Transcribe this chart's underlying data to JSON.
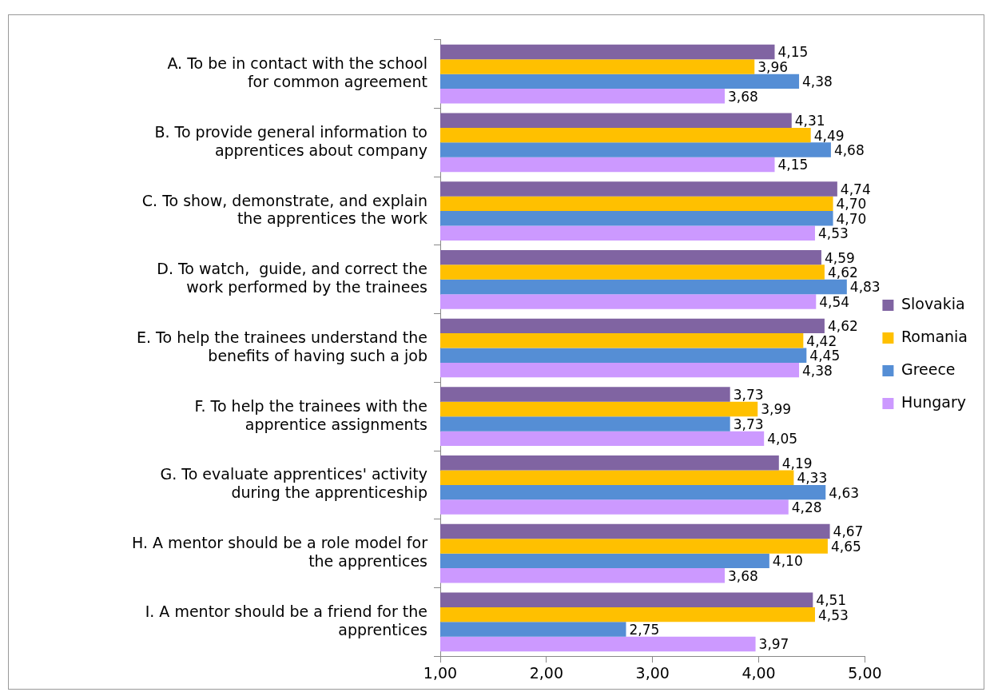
{
  "chart_data": {
    "type": "bar",
    "orientation": "horizontal",
    "categories": [
      "A. To be in contact with the school for common agreement",
      "B. To provide general information to apprentices about company",
      "C. To show, demonstrate, and explain the apprentices the work",
      "D. To watch,  guide, and correct the work performed by the trainees",
      "E. To help the trainees understand the benefits of having such a job",
      "F. To help the trainees with the apprentice assignments",
      "G. To evaluate apprentices' activity during the apprenticeship",
      "H. A mentor should be a role model for the apprentices",
      "I. A mentor should be a friend for the apprentices"
    ],
    "series": [
      {
        "name": "Slovakia",
        "color": "#8064a2",
        "values": [
          4.15,
          4.31,
          4.74,
          4.59,
          4.62,
          3.73,
          4.19,
          4.67,
          4.51
        ],
        "value_labels": [
          "4,15",
          "4,31",
          "4,74",
          "4,59",
          "4,62",
          "3,73",
          "4,19",
          "4,67",
          "4,51"
        ]
      },
      {
        "name": "Romania",
        "color": "#ffc000",
        "values": [
          3.96,
          4.49,
          4.7,
          4.62,
          4.42,
          3.99,
          4.33,
          4.65,
          4.53
        ],
        "value_labels": [
          "3,96",
          "4,49",
          "4,70",
          "4,62",
          "4,42",
          "3,99",
          "4,33",
          "4,65",
          "4,53"
        ]
      },
      {
        "name": "Greece",
        "color": "#558ed5",
        "values": [
          4.38,
          4.68,
          4.7,
          4.83,
          4.45,
          3.73,
          4.63,
          4.1,
          2.75
        ],
        "value_labels": [
          "4,38",
          "4,68",
          "4,70",
          "4,83",
          "4,45",
          "3,73",
          "4,63",
          "4,10",
          "2,75"
        ]
      },
      {
        "name": "Hungary",
        "color": "#cc99ff",
        "values": [
          3.68,
          4.15,
          4.53,
          4.54,
          4.38,
          4.05,
          4.28,
          3.68,
          3.97
        ],
        "value_labels": [
          "3,68",
          "4,15",
          "4,53",
          "4,54",
          "4,38",
          "4,05",
          "4,28",
          "3,68",
          "3,97"
        ]
      }
    ],
    "xlim": [
      1,
      5
    ],
    "xticks": [
      {
        "value": 1,
        "label": "1,00"
      },
      {
        "value": 2,
        "label": "2,00"
      },
      {
        "value": 3,
        "label": "3,00"
      },
      {
        "value": 4,
        "label": "4,00"
      },
      {
        "value": 5,
        "label": "5,00"
      }
    ],
    "grid": false,
    "legend": "right"
  }
}
